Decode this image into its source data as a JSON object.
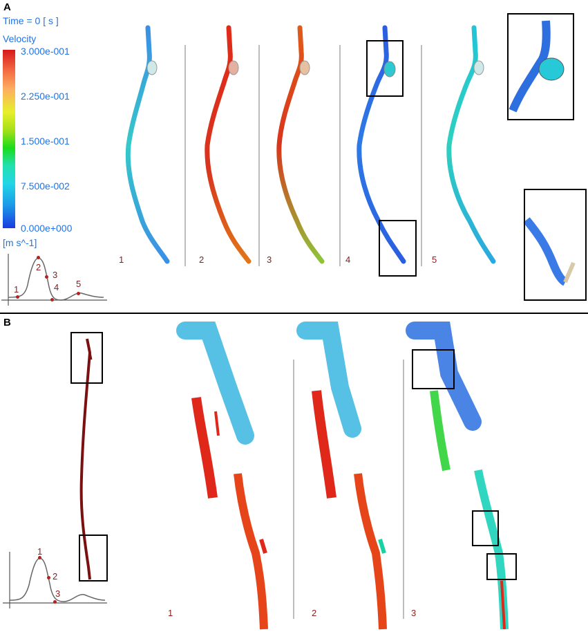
{
  "panel_a": {
    "letter": "A",
    "time_label": "Time = 0 [ s ]",
    "legend": {
      "title": "Velocity",
      "ticks": [
        "3.000e-001",
        "2.250e-001",
        "1.500e-001",
        "7.500e-002",
        "0.000e+000"
      ],
      "unit": "[m s^-1]",
      "colors": [
        "#d7191c",
        "#fdae61",
        "#e6f02a",
        "#1adc1a",
        "#22d6e6",
        "#1a50e0"
      ]
    },
    "waveform_points": [
      "1",
      "2",
      "3",
      "4",
      "5"
    ],
    "frames": [
      "1",
      "2",
      "3",
      "4",
      "5"
    ]
  },
  "panel_b": {
    "letter": "B",
    "waveform_points": [
      "1",
      "2",
      "3"
    ],
    "frames": [
      "1",
      "2",
      "3"
    ]
  }
}
